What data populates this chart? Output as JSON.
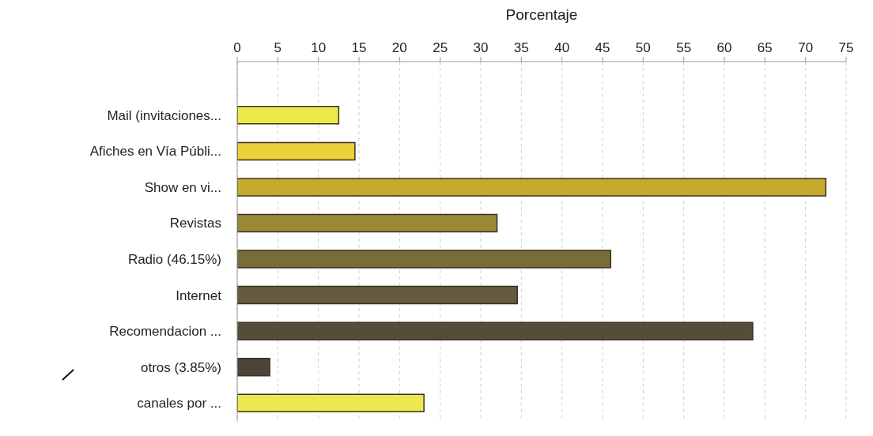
{
  "chart_data": {
    "type": "bar",
    "orientation": "horizontal",
    "xlabel": "Porcentaje",
    "categories": [
      "Mail (invitaciones...",
      "Afiches en Vía Públi...",
      "Show en vi...",
      "Revistas",
      "Radio (46.15%)",
      "Internet",
      "Recomendacion ...",
      "otros (3.85%)",
      "canales por ..."
    ],
    "values": [
      12.5,
      14.5,
      72.5,
      32,
      46,
      34.5,
      63.5,
      4,
      23
    ],
    "colors": [
      "#ede84a",
      "#ecd03c",
      "#c4aa2e",
      "#9a8a36",
      "#786c38",
      "#665a40",
      "#554c3c",
      "#4c4438",
      "#eee850"
    ],
    "xlim": [
      0,
      75
    ],
    "xticks": [
      0,
      5,
      10,
      15,
      20,
      25,
      30,
      35,
      40,
      45,
      50,
      55,
      60,
      65,
      70,
      75
    ],
    "grid": "x"
  }
}
